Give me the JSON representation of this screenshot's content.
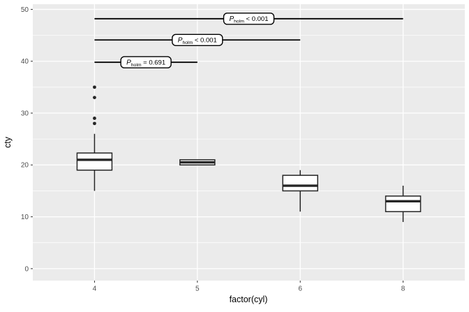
{
  "chart_data": {
    "type": "boxplot",
    "xlabel": "factor(cyl)",
    "ylabel": "cty",
    "categories": [
      "4",
      "5",
      "6",
      "8"
    ],
    "y_ticks": [
      0,
      10,
      20,
      30,
      40,
      50
    ],
    "y_minor_ticks": [
      5,
      15,
      25,
      35,
      45
    ],
    "ylim": [
      -2.3,
      51
    ],
    "grid": true,
    "legend": "none",
    "panel_bg": "#EBEBEB",
    "grid_color": "#FFFFFF",
    "box_stroke": "#262626",
    "bracket_color": "#000000",
    "tick_text_color": "#4D4D4D",
    "boxes": [
      {
        "category": "4",
        "whisker_low": 15,
        "q1": 19,
        "median": 21,
        "q3": 22.3,
        "whisker_high": 26,
        "outliers": [
          28,
          29,
          33,
          35
        ]
      },
      {
        "category": "5",
        "whisker_low": 20,
        "q1": 20,
        "median": 20.5,
        "q3": 21,
        "whisker_high": 21,
        "outliers": []
      },
      {
        "category": "6",
        "whisker_low": 11,
        "q1": 15,
        "median": 16,
        "q3": 18,
        "whisker_high": 19,
        "outliers": []
      },
      {
        "category": "8",
        "whisker_low": 9,
        "q1": 11,
        "median": 13,
        "q3": 14,
        "whisker_high": 16,
        "outliers": []
      }
    ],
    "comparisons": [
      {
        "group1": "4",
        "group2": "5",
        "label_symbol": "P",
        "label_subscript": "holm",
        "label_value": " = 0.691",
        "y": 39.8
      },
      {
        "group1": "4",
        "group2": "6",
        "label_symbol": "P",
        "label_subscript": "holm",
        "label_value": " < 0.001",
        "y": 44.1
      },
      {
        "group1": "4",
        "group2": "8",
        "label_symbol": "P",
        "label_subscript": "holm",
        "label_value": " < 0.001",
        "y": 48.2
      }
    ]
  }
}
